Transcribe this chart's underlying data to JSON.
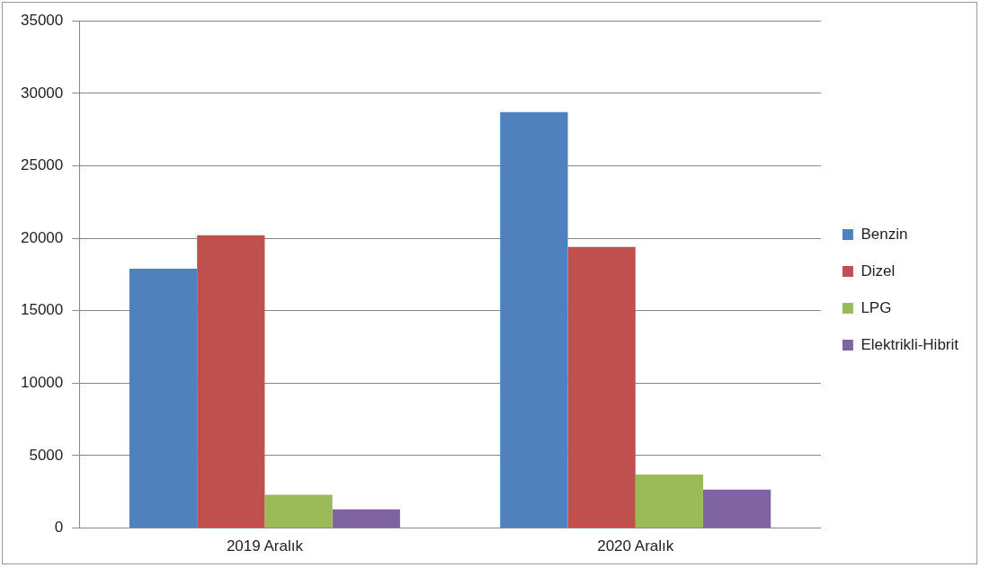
{
  "chart_data": {
    "type": "bar",
    "categories": [
      "2019 Aralık",
      "2020 Aralık"
    ],
    "series": [
      {
        "name": "Benzin",
        "color": "#4f81bd",
        "values": [
          17900,
          28700
        ]
      },
      {
        "name": "Dizel",
        "color": "#c0504d",
        "values": [
          20200,
          19400
        ]
      },
      {
        "name": "LPG",
        "color": "#9bbb59",
        "values": [
          2300,
          3700
        ]
      },
      {
        "name": "Elektrikli-Hibrit",
        "color": "#8064a2",
        "values": [
          1300,
          2650
        ]
      }
    ],
    "ylim": [
      0,
      35000
    ],
    "yticks": [
      0,
      5000,
      10000,
      15000,
      20000,
      25000,
      30000,
      35000
    ],
    "grid": "y",
    "legend": "right"
  }
}
